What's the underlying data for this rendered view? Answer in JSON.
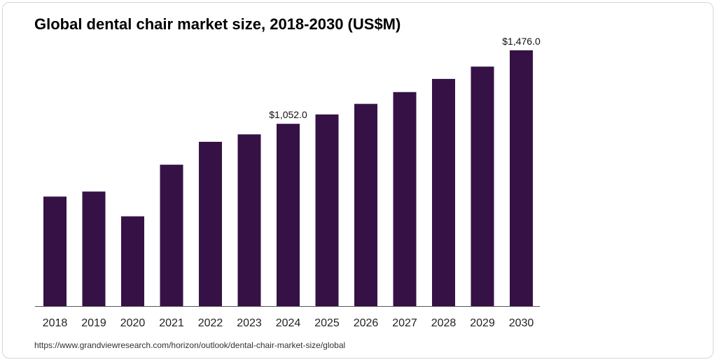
{
  "chart_data": {
    "type": "bar",
    "title": "Global dental chair market size, 2018-2030 (US$M)",
    "categories": [
      "2018",
      "2019",
      "2020",
      "2021",
      "2022",
      "2023",
      "2024",
      "2025",
      "2026",
      "2027",
      "2028",
      "2029",
      "2030"
    ],
    "values": [
      632,
      661,
      518,
      816,
      948,
      991,
      1052,
      1106,
      1167,
      1235,
      1311,
      1382,
      1476.0
    ],
    "data_labels": [
      {
        "index": 6,
        "text": "$1,052.0"
      },
      {
        "index": 12,
        "text": "$1,476.0"
      }
    ],
    "ylim": [
      0,
      1476.0
    ],
    "grid": false,
    "bar_color": "#361146",
    "axis_color": "#555555"
  },
  "source_url": "https://www.grandviewresearch.com/horizon/outlook/dental-chair-market-size/global"
}
